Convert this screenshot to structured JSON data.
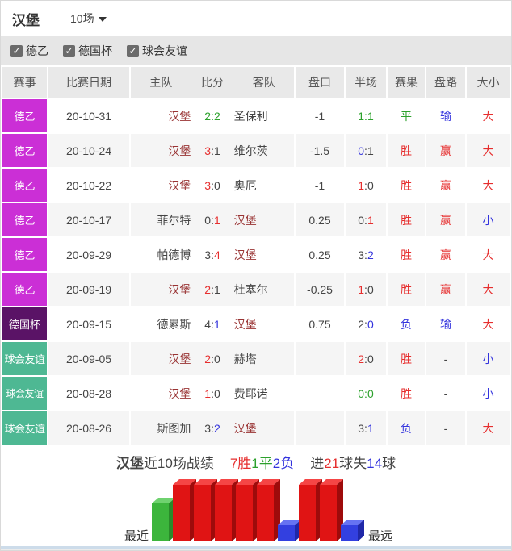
{
  "title_bar": {
    "team": "汉堡",
    "range_label": "10场"
  },
  "filters": [
    {
      "label": "德乙",
      "checked": true
    },
    {
      "label": "德国杯",
      "checked": true
    },
    {
      "label": "球会友谊",
      "checked": true
    }
  ],
  "table": {
    "columns": [
      "赛事",
      "比赛日期",
      "主队",
      "比分",
      "客队",
      "盘口",
      "半场",
      "赛果",
      "盘路",
      "大小"
    ],
    "rows": [
      {
        "league": "德乙",
        "league_key": "de2",
        "date": "20-10-31",
        "home": "汉堡",
        "home_cls": "maroon",
        "away": "圣保利",
        "away_cls": "dark",
        "score": [
          [
            "2",
            "green"
          ],
          [
            ":",
            "green"
          ],
          [
            "2",
            "green"
          ]
        ],
        "handicap": "-1",
        "half": [
          [
            "1",
            "green"
          ],
          [
            ":",
            "green"
          ],
          [
            "1",
            "green"
          ]
        ],
        "result": [
          "平",
          "green"
        ],
        "trend": [
          "输",
          "blue"
        ],
        "ou": [
          "大",
          "red"
        ]
      },
      {
        "league": "德乙",
        "league_key": "de2",
        "date": "20-10-24",
        "home": "汉堡",
        "home_cls": "maroon",
        "away": "维尔茨",
        "away_cls": "dark",
        "score": [
          [
            "3",
            "red"
          ],
          [
            ":",
            "dark"
          ],
          [
            "1",
            "dark"
          ]
        ],
        "handicap": "-1.5",
        "half": [
          [
            "0",
            "blue"
          ],
          [
            ":",
            "dark"
          ],
          [
            "1",
            "dark"
          ]
        ],
        "result": [
          "胜",
          "red"
        ],
        "trend": [
          "赢",
          "red"
        ],
        "ou": [
          "大",
          "red"
        ]
      },
      {
        "league": "德乙",
        "league_key": "de2",
        "date": "20-10-22",
        "home": "汉堡",
        "home_cls": "maroon",
        "away": "奥厄",
        "away_cls": "dark",
        "score": [
          [
            "3",
            "red"
          ],
          [
            ":",
            "dark"
          ],
          [
            "0",
            "dark"
          ]
        ],
        "handicap": "-1",
        "half": [
          [
            "1",
            "red"
          ],
          [
            ":",
            "dark"
          ],
          [
            "0",
            "dark"
          ]
        ],
        "result": [
          "胜",
          "red"
        ],
        "trend": [
          "赢",
          "red"
        ],
        "ou": [
          "大",
          "red"
        ]
      },
      {
        "league": "德乙",
        "league_key": "de2",
        "date": "20-10-17",
        "home": "菲尔特",
        "home_cls": "dark",
        "away": "汉堡",
        "away_cls": "maroon",
        "score": [
          [
            "0",
            "dark"
          ],
          [
            ":",
            "dark"
          ],
          [
            "1",
            "red"
          ]
        ],
        "handicap": "0.25",
        "half": [
          [
            "0",
            "dark"
          ],
          [
            ":",
            "dark"
          ],
          [
            "1",
            "red"
          ]
        ],
        "result": [
          "胜",
          "red"
        ],
        "trend": [
          "赢",
          "red"
        ],
        "ou": [
          "小",
          "blue"
        ]
      },
      {
        "league": "德乙",
        "league_key": "de2",
        "date": "20-09-29",
        "home": "帕德博",
        "home_cls": "dark",
        "away": "汉堡",
        "away_cls": "maroon",
        "score": [
          [
            "3",
            "dark"
          ],
          [
            ":",
            "dark"
          ],
          [
            "4",
            "red"
          ]
        ],
        "handicap": "0.25",
        "half": [
          [
            "3",
            "dark"
          ],
          [
            ":",
            "dark"
          ],
          [
            "2",
            "blue"
          ]
        ],
        "result": [
          "胜",
          "red"
        ],
        "trend": [
          "赢",
          "red"
        ],
        "ou": [
          "大",
          "red"
        ]
      },
      {
        "league": "德乙",
        "league_key": "de2",
        "date": "20-09-19",
        "home": "汉堡",
        "home_cls": "maroon",
        "away": "杜塞尔",
        "away_cls": "dark",
        "score": [
          [
            "2",
            "red"
          ],
          [
            ":",
            "dark"
          ],
          [
            "1",
            "dark"
          ]
        ],
        "handicap": "-0.25",
        "half": [
          [
            "1",
            "red"
          ],
          [
            ":",
            "dark"
          ],
          [
            "0",
            "dark"
          ]
        ],
        "result": [
          "胜",
          "red"
        ],
        "trend": [
          "赢",
          "red"
        ],
        "ou": [
          "大",
          "red"
        ]
      },
      {
        "league": "德国杯",
        "league_key": "cup",
        "date": "20-09-15",
        "home": "德累斯",
        "home_cls": "dark",
        "away": "汉堡",
        "away_cls": "maroon",
        "score": [
          [
            "4",
            "dark"
          ],
          [
            ":",
            "dark"
          ],
          [
            "1",
            "blue"
          ]
        ],
        "handicap": "0.75",
        "half": [
          [
            "2",
            "dark"
          ],
          [
            ":",
            "dark"
          ],
          [
            "0",
            "blue"
          ]
        ],
        "result": [
          "负",
          "blue"
        ],
        "trend": [
          "输",
          "blue"
        ],
        "ou": [
          "大",
          "red"
        ]
      },
      {
        "league": "球会友谊",
        "league_key": "friendly",
        "date": "20-09-05",
        "home": "汉堡",
        "home_cls": "maroon",
        "away": "赫塔",
        "away_cls": "dark",
        "score": [
          [
            "2",
            "red"
          ],
          [
            ":",
            "dark"
          ],
          [
            "0",
            "dark"
          ]
        ],
        "handicap": "",
        "half": [
          [
            "2",
            "red"
          ],
          [
            ":",
            "dark"
          ],
          [
            "0",
            "dark"
          ]
        ],
        "result": [
          "胜",
          "red"
        ],
        "trend": [
          "-",
          "dark"
        ],
        "ou": [
          "小",
          "blue"
        ]
      },
      {
        "league": "球会友谊",
        "league_key": "friendly",
        "date": "20-08-28",
        "home": "汉堡",
        "home_cls": "maroon",
        "away": "费耶诺",
        "away_cls": "dark",
        "score": [
          [
            "1",
            "red"
          ],
          [
            ":",
            "dark"
          ],
          [
            "0",
            "dark"
          ]
        ],
        "handicap": "",
        "half": [
          [
            "0",
            "green"
          ],
          [
            ":",
            "green"
          ],
          [
            "0",
            "green"
          ]
        ],
        "result": [
          "胜",
          "red"
        ],
        "trend": [
          "-",
          "dark"
        ],
        "ou": [
          "小",
          "blue"
        ]
      },
      {
        "league": "球会友谊",
        "league_key": "friendly",
        "date": "20-08-26",
        "home": "斯图加",
        "home_cls": "dark",
        "away": "汉堡",
        "away_cls": "maroon",
        "score": [
          [
            "3",
            "dark"
          ],
          [
            ":",
            "dark"
          ],
          [
            "2",
            "blue"
          ]
        ],
        "handicap": "",
        "half": [
          [
            "3",
            "dark"
          ],
          [
            ":",
            "dark"
          ],
          [
            "1",
            "blue"
          ]
        ],
        "result": [
          "负",
          "blue"
        ],
        "trend": [
          "-",
          "dark"
        ],
        "ou": [
          "大",
          "red"
        ]
      }
    ]
  },
  "summary": {
    "segments": [
      {
        "text": "汉堡",
        "cls": "dark",
        "bold": true
      },
      {
        "text": "近10场战绩",
        "cls": "dark"
      },
      {
        "text": "7胜",
        "cls": "red",
        "gap_before": true
      },
      {
        "text": "1平",
        "cls": "green"
      },
      {
        "text": "2负",
        "cls": "blue"
      },
      {
        "text": "进",
        "cls": "dark",
        "gap_before": true
      },
      {
        "text": "21",
        "cls": "red"
      },
      {
        "text": "球失",
        "cls": "dark"
      },
      {
        "text": "14",
        "cls": "blue"
      },
      {
        "text": "球",
        "cls": "dark"
      }
    ]
  },
  "chart_data": {
    "type": "bar",
    "title": "汉堡近10场战绩 7胜1平2负 进21球失14球",
    "results": [
      "draw",
      "win",
      "win",
      "win",
      "win",
      "win",
      "loss",
      "win",
      "win",
      "loss"
    ],
    "left_label": "最近",
    "right_label": "最远",
    "bar_colors": {
      "win": {
        "front": "#e01414",
        "top": "#f54545",
        "side": "#9e0b0b"
      },
      "draw": {
        "front": "#3cb53c",
        "top": "#6fd26f",
        "side": "#2a8a2a"
      },
      "loss": {
        "front": "#3340e0",
        "top": "#6673f2",
        "side": "#2028a8"
      }
    }
  },
  "colors": {
    "red": "#e62e2e",
    "blue": "#3333dd",
    "green": "#2ca12c",
    "dark": "#444444",
    "maroon": "#993333",
    "league_de2": "#cb2fd6",
    "league_cup": "#5a1366",
    "league_friendly": "#4eb893"
  }
}
